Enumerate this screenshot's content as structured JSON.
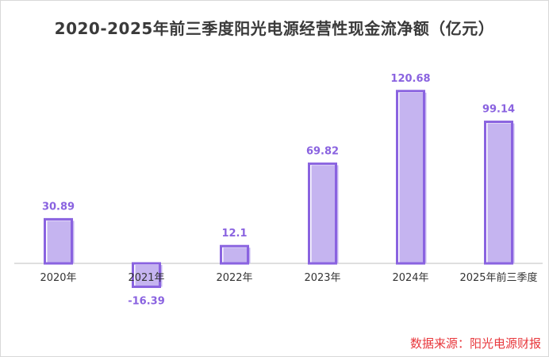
{
  "chart_data": {
    "type": "bar",
    "title": "2020-2025年前三季度阳光电源经营性现金流净额（亿元）",
    "categories": [
      "2020年",
      "2021年",
      "2022年",
      "2023年",
      "2024年",
      "2025年前三季度"
    ],
    "values": [
      30.89,
      -16.39,
      12.1,
      69.82,
      120.68,
      99.14
    ],
    "data_labels": [
      "30.89",
      "-16.39",
      "12.1",
      "69.82",
      "120.68",
      "99.14"
    ],
    "xlabel": "",
    "ylabel": "",
    "grid": false,
    "legend": "none",
    "source": "数据来源：阳光电源财报"
  },
  "colors": {
    "bar_fill": "#c5b4f0",
    "bar_outline": "#8a63e0",
    "label": "#8a63e0",
    "axis": "#bfbfbf",
    "source": "#e8383d",
    "title": "#3a3a3a"
  }
}
